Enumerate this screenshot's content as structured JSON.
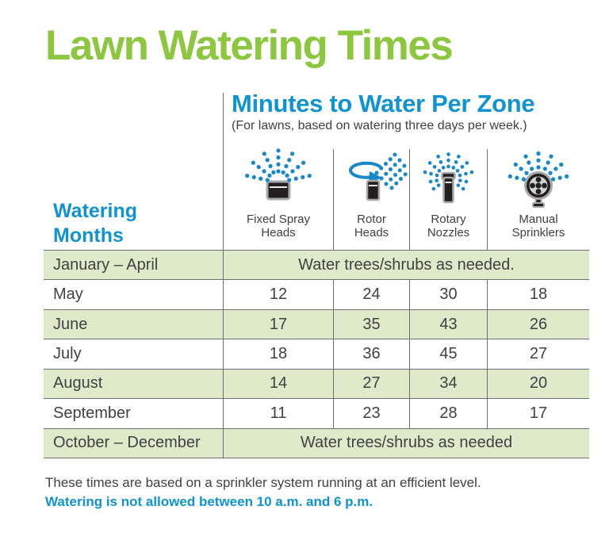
{
  "title": "Lawn Watering Times",
  "panel": {
    "title": "Minutes to Water Per Zone",
    "subtitle": "(For lawns, based on watering three days per week.)"
  },
  "row_header": {
    "line1": "Watering",
    "line2": "Months"
  },
  "header": {
    "columns": [
      {
        "line1": "Fixed Spray",
        "line2": "Heads",
        "icon": "fixed-spray-heads-icon"
      },
      {
        "line1": "Rotor",
        "line2": "Heads",
        "icon": "rotor-heads-icon"
      },
      {
        "line1": "Rotary",
        "line2": "Nozzles",
        "icon": "rotary-nozzles-icon"
      },
      {
        "line1": "Manual",
        "line2": "Sprinklers",
        "icon": "manual-sprinklers-icon"
      }
    ]
  },
  "footer": {
    "note": "These times are based on a sprinkler system running at an efficient level.",
    "restriction": "Watering is not allowed between 10 a.m. and 6 p.m."
  },
  "colors": {
    "title_green": "#8dc63f",
    "heading_blue": "#0f93d3",
    "dot_blue": "#1888c8",
    "row_green": "#dfeaca",
    "line_gray": "#6d6e71",
    "text_gray": "#414042"
  },
  "chart_data": {
    "type": "table",
    "title": "Lawn Watering Times",
    "subtitle": "Minutes to Water Per Zone",
    "note": "(For lawns, based on watering three days per week.)",
    "row_header": "Watering Months",
    "columns": [
      "Fixed Spray Heads",
      "Rotor Heads",
      "Rotary Nozzles",
      "Manual Sprinklers"
    ],
    "rows": [
      {
        "month": "January – April",
        "note": "Water trees/shrubs as needed."
      },
      {
        "month": "May",
        "values": [
          12,
          24,
          30,
          18
        ]
      },
      {
        "month": "June",
        "values": [
          17,
          35,
          43,
          26
        ]
      },
      {
        "month": "July",
        "values": [
          18,
          36,
          45,
          27
        ]
      },
      {
        "month": "August",
        "values": [
          14,
          27,
          34,
          20
        ]
      },
      {
        "month": "September",
        "values": [
          11,
          23,
          28,
          17
        ]
      },
      {
        "month": "October – December",
        "note": "Water trees/shrubs as needed"
      }
    ],
    "footnotes": [
      "These times are based on a sprinkler system running at an efficient level.",
      "Watering is not allowed between 10 a.m. and 6 p.m."
    ]
  }
}
